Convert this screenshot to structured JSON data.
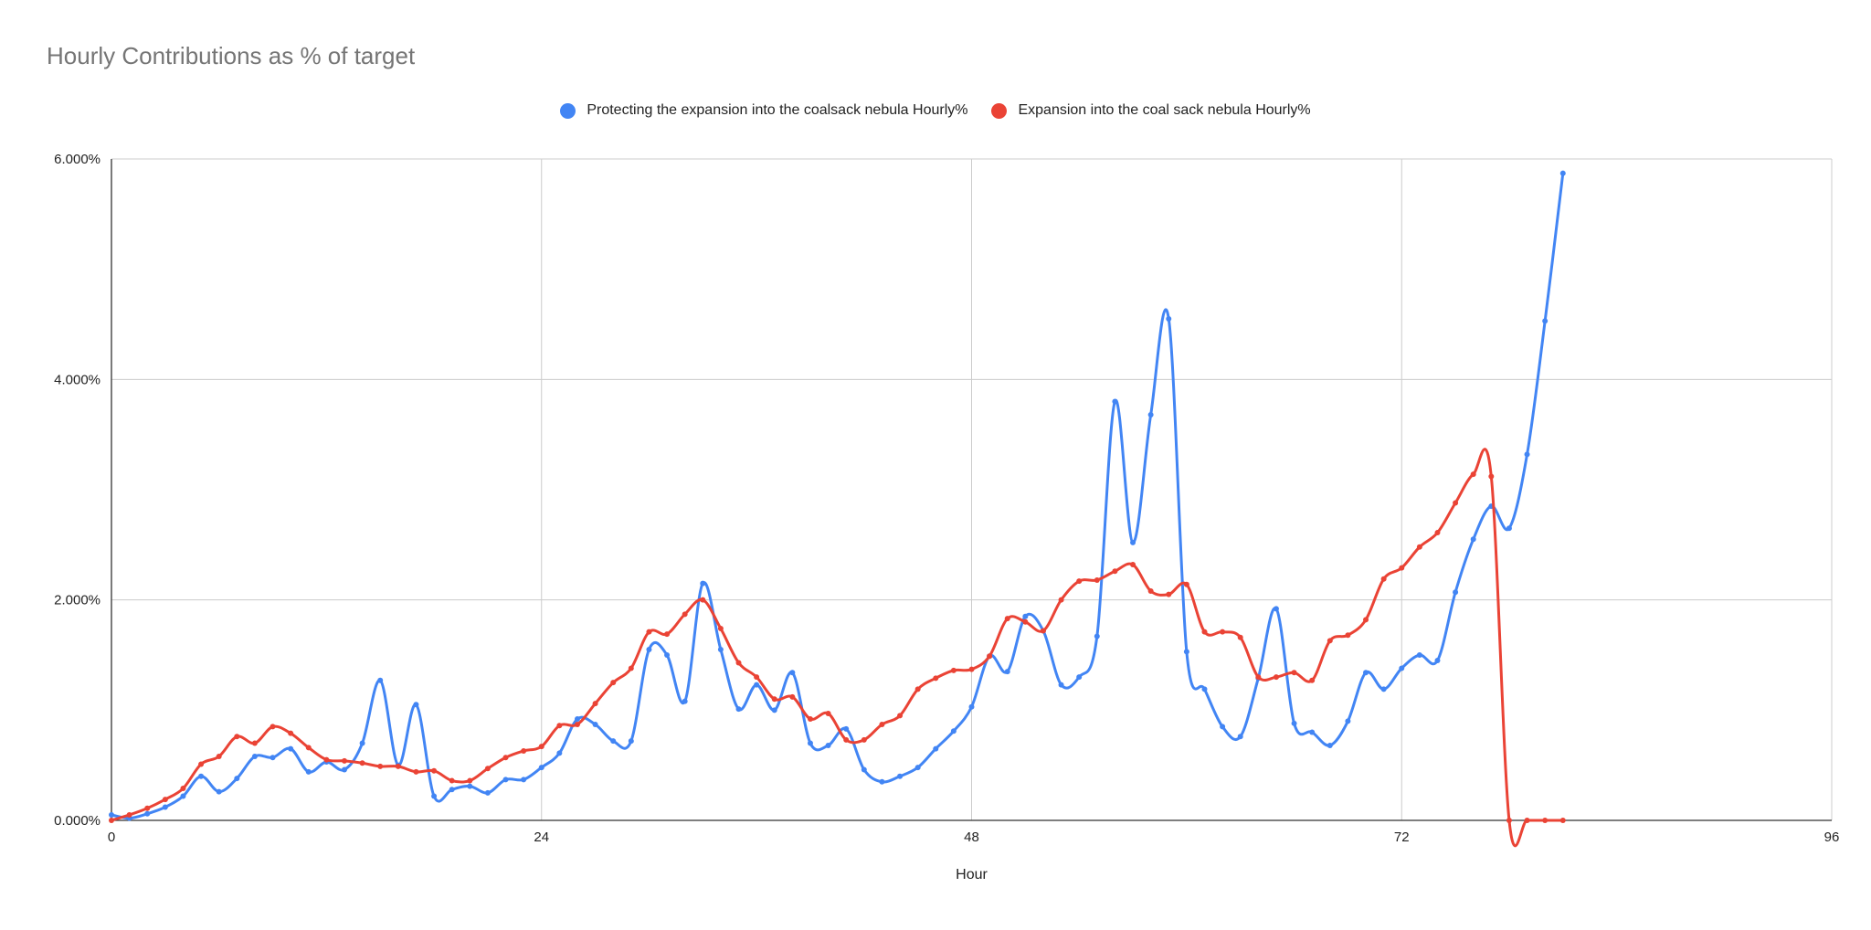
{
  "chart_data": {
    "type": "line",
    "title": "Hourly Contributions as % of target",
    "xlabel": "Hour",
    "ylabel": "",
    "xlim": [
      0,
      96
    ],
    "ylim": [
      0,
      6
    ],
    "x_ticks": [
      0,
      24,
      48,
      72,
      96
    ],
    "x_tick_labels": [
      "0",
      "24",
      "48",
      "72",
      "96"
    ],
    "y_ticks": [
      0,
      2,
      4,
      6
    ],
    "y_tick_labels": [
      "0.000%",
      "2.000%",
      "4.000%",
      "6.000%"
    ],
    "grid": true,
    "legend_position": "top",
    "series": [
      {
        "name": "Protecting the expansion into the coalsack nebula Hourly%",
        "color": "#4285f4",
        "x": [
          0,
          1,
          2,
          3,
          4,
          5,
          6,
          7,
          8,
          9,
          10,
          11,
          12,
          13,
          14,
          15,
          16,
          17,
          18,
          19,
          20,
          21,
          22,
          23,
          24,
          25,
          26,
          27,
          28,
          29,
          30,
          31,
          32,
          33,
          34,
          35,
          36,
          37,
          38,
          39,
          40,
          41,
          42,
          43,
          44,
          45,
          46,
          47,
          48,
          49,
          50,
          51,
          52,
          53,
          54,
          55,
          56,
          57,
          58,
          59,
          60,
          61,
          62,
          63,
          64,
          65,
          66,
          67,
          68,
          69,
          70,
          71,
          72,
          73,
          74,
          75,
          76,
          77,
          78,
          79,
          80,
          81
        ],
        "values": [
          0.05,
          0.02,
          0.06,
          0.12,
          0.22,
          0.4,
          0.26,
          0.38,
          0.58,
          0.57,
          0.65,
          0.44,
          0.53,
          0.46,
          0.7,
          1.27,
          0.5,
          1.05,
          0.22,
          0.28,
          0.31,
          0.25,
          0.37,
          0.37,
          0.48,
          0.61,
          0.92,
          0.87,
          0.72,
          0.72,
          1.55,
          1.5,
          1.08,
          2.15,
          1.55,
          1.01,
          1.23,
          1.0,
          1.34,
          0.7,
          0.68,
          0.83,
          0.46,
          0.35,
          0.4,
          0.48,
          0.65,
          0.81,
          1.03,
          1.49,
          1.35,
          1.85,
          1.72,
          1.23,
          1.3,
          1.67,
          3.8,
          2.52,
          3.68,
          4.55,
          1.53,
          1.19,
          0.85,
          0.76,
          1.29,
          1.92,
          0.88,
          0.8,
          0.68,
          0.9,
          1.34,
          1.19,
          1.38,
          1.5,
          1.45,
          2.07,
          2.55,
          2.85,
          2.65,
          3.32,
          4.53,
          5.87
        ]
      },
      {
        "name": "Expansion into the coal sack nebula Hourly%",
        "color": "#ea4335",
        "x": [
          0,
          1,
          2,
          3,
          4,
          5,
          6,
          7,
          8,
          9,
          10,
          11,
          12,
          13,
          14,
          15,
          16,
          17,
          18,
          19,
          20,
          21,
          22,
          23,
          24,
          25,
          26,
          27,
          28,
          29,
          30,
          31,
          32,
          33,
          34,
          35,
          36,
          37,
          38,
          39,
          40,
          41,
          42,
          43,
          44,
          45,
          46,
          47,
          48,
          49,
          50,
          51,
          52,
          53,
          54,
          55,
          56,
          57,
          58,
          59,
          60,
          61,
          62,
          63,
          64,
          65,
          66,
          67,
          68,
          69,
          70,
          71,
          72,
          73,
          74,
          75,
          76,
          77,
          78,
          79,
          80,
          81
        ],
        "values": [
          0.0,
          0.05,
          0.11,
          0.19,
          0.29,
          0.51,
          0.58,
          0.76,
          0.7,
          0.85,
          0.79,
          0.66,
          0.55,
          0.54,
          0.52,
          0.49,
          0.49,
          0.44,
          0.45,
          0.36,
          0.36,
          0.47,
          0.57,
          0.63,
          0.67,
          0.86,
          0.87,
          1.06,
          1.25,
          1.38,
          1.71,
          1.69,
          1.87,
          2.0,
          1.74,
          1.43,
          1.3,
          1.1,
          1.12,
          0.92,
          0.97,
          0.73,
          0.73,
          0.87,
          0.95,
          1.19,
          1.29,
          1.36,
          1.37,
          1.49,
          1.83,
          1.8,
          1.72,
          2.0,
          2.17,
          2.18,
          2.26,
          2.32,
          2.08,
          2.05,
          2.14,
          1.71,
          1.71,
          1.66,
          1.3,
          1.3,
          1.34,
          1.27,
          1.63,
          1.68,
          1.82,
          2.19,
          2.29,
          2.48,
          2.61,
          2.88,
          3.14,
          3.12,
          0.0,
          0.0,
          0.0,
          0.0
        ]
      }
    ]
  }
}
